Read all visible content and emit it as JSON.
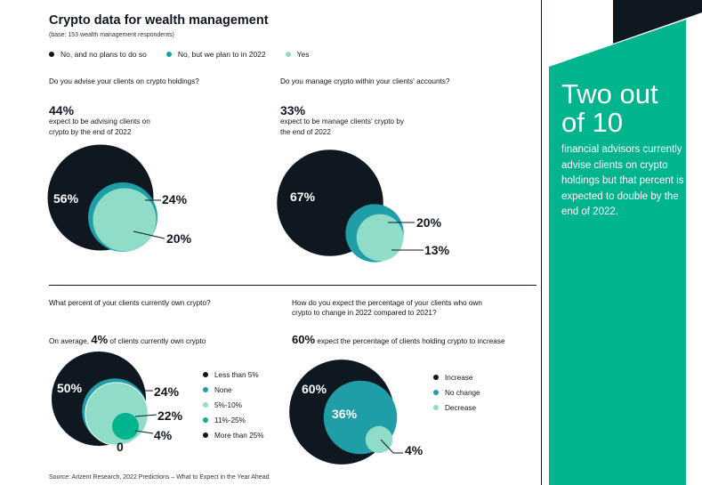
{
  "title": "Crypto data for wealth management",
  "base": "(base: 153 wealth management respondents)",
  "legend": [
    {
      "label": "No, and no plans to do so",
      "color": "#0f1820"
    },
    {
      "label": "No, but we plan to in 2022",
      "color": "#1f9ea8"
    },
    {
      "label": "Yes",
      "color": "#8fdcc8"
    }
  ],
  "colors": {
    "dark": "#0f1820",
    "teal": "#1f9ea8",
    "mint": "#8fdcc8",
    "green": "#00b48e"
  },
  "sidebar": {
    "headline_line1": "Two out",
    "headline_line2": "of 10",
    "body": "financial advisors currently advise clients on crypto holdings but that percent is expected to double by the end of 2022."
  },
  "source": "Source: Arizent Research, 2022 Predictions – What to Expect in the Year Ahead",
  "panel1": {
    "question": "Do you advise your clients on crypto holdings?",
    "stat": "44%",
    "stat_line1": "expect to be advising clients on",
    "stat_line2": "crypto by the end of 2022"
  },
  "panel2": {
    "question": "Do you manage crypto within your clients' accounts?",
    "stat": "33%",
    "stat_line1": "expect to be manage clients' crypto by",
    "stat_line2": "the end of 2022"
  },
  "panel3": {
    "question": "What percent of your clients currently own crypto?",
    "avg_prefix": "On average,",
    "avg_value": "4%",
    "avg_suffix": "of clients currently own crypto",
    "legend": [
      {
        "label": "Less than 5%",
        "color": "#0f1820"
      },
      {
        "label": "None",
        "color": "#1f9ea8"
      },
      {
        "label": "5%-10%",
        "color": "#8fdcc8"
      },
      {
        "label": "11%-25%",
        "color": "#00b48e"
      },
      {
        "label": "More than 25%",
        "color": "#0f1820"
      }
    ]
  },
  "panel4": {
    "question_line1": "How do you expect the percentage of your clients who own",
    "question_line2": "crypto to change in 2022 compared to 2021?",
    "stat": "60%",
    "stat_text": "expect the percentage of clients holding crypto to increase",
    "legend": [
      {
        "label": "Increase",
        "color": "#0f1820"
      },
      {
        "label": "No change",
        "color": "#1f9ea8"
      },
      {
        "label": "Decrease",
        "color": "#8fdcc8"
      }
    ]
  },
  "chart_data": [
    {
      "type": "bubble",
      "title": "Do you advise your clients on crypto holdings?",
      "series": [
        {
          "name": "No, and no plans to do so",
          "value": 56,
          "label": "56%"
        },
        {
          "name": "No, but we plan to in 2022",
          "value": 24,
          "label": "24%"
        },
        {
          "name": "Yes",
          "value": 20,
          "label": "20%"
        }
      ]
    },
    {
      "type": "bubble",
      "title": "Do you manage crypto within your clients' accounts?",
      "series": [
        {
          "name": "No, and no plans to do so",
          "value": 67,
          "label": "67%"
        },
        {
          "name": "No, but we plan to in 2022",
          "value": 20,
          "label": "20%"
        },
        {
          "name": "Yes",
          "value": 13,
          "label": "13%"
        }
      ]
    },
    {
      "type": "bubble",
      "title": "What percent of your clients currently own crypto?",
      "series": [
        {
          "name": "Less than 5%",
          "value": 50,
          "label": "50%"
        },
        {
          "name": "None",
          "value": 24,
          "label": "24%"
        },
        {
          "name": "5%-10%",
          "value": 22,
          "label": "22%"
        },
        {
          "name": "11%-25%",
          "value": 4,
          "label": "4%"
        },
        {
          "name": "More than 25%",
          "value": 0,
          "label": "0"
        }
      ]
    },
    {
      "type": "bubble",
      "title": "How do you expect the percentage of your clients who own crypto to change in 2022 compared to 2021?",
      "series": [
        {
          "name": "Increase",
          "value": 60,
          "label": "60%"
        },
        {
          "name": "No change",
          "value": 36,
          "label": "36%"
        },
        {
          "name": "Decrease",
          "value": 4,
          "label": "4%"
        }
      ]
    }
  ]
}
